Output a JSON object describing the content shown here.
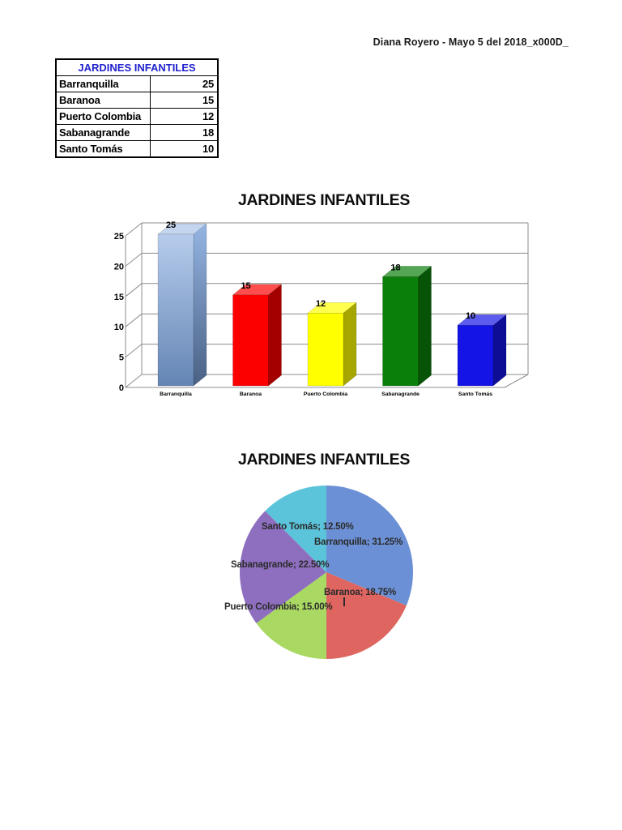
{
  "page": {
    "header_note": "Diana Royero - Mayo 5 del 2018_x000D_",
    "background": "#ffffff"
  },
  "table": {
    "title": "JARDINES INFANTILES",
    "title_color": "#2121CE",
    "rows": [
      {
        "label": "Barranquilla",
        "value": "25"
      },
      {
        "label": "Baranoa",
        "value": "15"
      },
      {
        "label": "Puerto Colombia",
        "value": "12"
      },
      {
        "label": "Sabanagrande",
        "value": "18"
      },
      {
        "label": "Santo Tomás",
        "value": "10"
      }
    ]
  },
  "chart_data": [
    {
      "type": "bar",
      "style": "3d-column",
      "title": "JARDINES INFANTILES",
      "categories": [
        "Barranquilla",
        "Baranoa",
        "Puerto Colombia",
        "Sabanagrande",
        "Santo Tomás"
      ],
      "values": [
        25,
        15,
        12,
        18,
        10
      ],
      "value_labels": [
        "25",
        "15",
        "12",
        "18",
        "10"
      ],
      "xlabel": "",
      "ylabel": "",
      "ylim": [
        0,
        25
      ],
      "yticks": [
        0,
        5,
        10,
        15,
        20,
        25
      ],
      "grid": true,
      "legend": "none",
      "bar_colors": [
        "#7AA2DC",
        "#FC0000",
        "#FFFF00",
        "#0A7F0A",
        "#1414E6"
      ],
      "first_bar_gradient": true
    },
    {
      "type": "pie",
      "title": "JARDINES INFANTILES",
      "categories": [
        "Barranquilla",
        "Baranoa",
        "Puerto Colombia",
        "Sabanagrande",
        "Santo Tomás"
      ],
      "values": [
        25,
        15,
        12,
        18,
        10
      ],
      "percentages": [
        31.25,
        18.75,
        15.0,
        22.5,
        12.5
      ],
      "labels": [
        "Barranquilla; 31.25%",
        "Baranoa; 18.75%",
        "Puerto Colombia; 15.00%",
        "Sabanagrande; 22.50%",
        "Santo Tomás; 12.50%"
      ],
      "colors": [
        "#6B90D5",
        "#DF6560",
        "#A9D863",
        "#8E6EBE",
        "#5CC4DA"
      ],
      "start_angle": 0,
      "direction": "clockwise",
      "legend": "none"
    }
  ]
}
